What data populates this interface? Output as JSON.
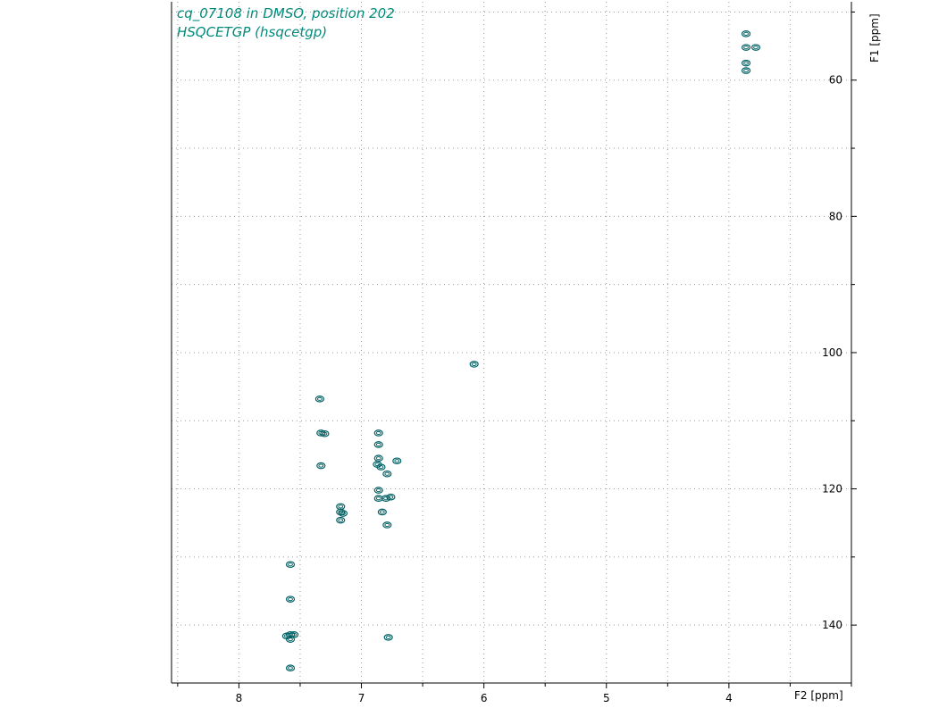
{
  "title_lines": [
    "cq_07108 in DMSO, position 202",
    "HSQCETGP (hsqcetgp)"
  ],
  "colors": {
    "contour": "#006064",
    "title": "#008b7a",
    "grid": "#9a9a9a",
    "axis": "#000000"
  },
  "chart_data": {
    "type": "scatter",
    "x_axis": {
      "label": "F2 [ppm]",
      "min": 3.0,
      "max": 8.55,
      "reversed": true,
      "ticks": [
        8,
        7,
        6,
        5,
        4
      ],
      "minor_step": 0.5,
      "grid_step": 0.5
    },
    "y_axis": {
      "label": "F1 [ppm]",
      "min": 48.5,
      "max": 148.5,
      "reversed": true,
      "ticks": [
        60,
        80,
        100,
        120,
        140
      ],
      "minor_step": 10,
      "grid_step": 10,
      "position": "right"
    },
    "grid": true,
    "peaks": [
      {
        "x": 3.86,
        "y": 55.2
      },
      {
        "x": 3.78,
        "y": 55.2
      },
      {
        "x": 3.86,
        "y": 53.2
      },
      {
        "x": 3.86,
        "y": 57.5
      },
      {
        "x": 3.86,
        "y": 58.6
      },
      {
        "x": 6.08,
        "y": 101.7
      },
      {
        "x": 7.33,
        "y": 111.8
      },
      {
        "x": 7.3,
        "y": 111.9
      },
      {
        "x": 7.33,
        "y": 116.6
      },
      {
        "x": 7.34,
        "y": 106.8
      },
      {
        "x": 6.86,
        "y": 111.8
      },
      {
        "x": 6.86,
        "y": 113.5
      },
      {
        "x": 6.86,
        "y": 115.5
      },
      {
        "x": 6.87,
        "y": 116.4
      },
      {
        "x": 6.84,
        "y": 116.8
      },
      {
        "x": 6.79,
        "y": 117.8
      },
      {
        "x": 6.71,
        "y": 115.9
      },
      {
        "x": 6.86,
        "y": 120.2
      },
      {
        "x": 6.86,
        "y": 121.4
      },
      {
        "x": 6.8,
        "y": 121.4
      },
      {
        "x": 6.76,
        "y": 121.2
      },
      {
        "x": 6.83,
        "y": 123.4
      },
      {
        "x": 7.17,
        "y": 123.4
      },
      {
        "x": 7.15,
        "y": 123.6
      },
      {
        "x": 7.17,
        "y": 124.6
      },
      {
        "x": 7.17,
        "y": 122.6
      },
      {
        "x": 6.79,
        "y": 125.3
      },
      {
        "x": 7.58,
        "y": 131.1
      },
      {
        "x": 7.58,
        "y": 136.2
      },
      {
        "x": 7.58,
        "y": 141.4
      },
      {
        "x": 7.55,
        "y": 141.4
      },
      {
        "x": 7.61,
        "y": 141.6
      },
      {
        "x": 7.58,
        "y": 142.1
      },
      {
        "x": 6.78,
        "y": 141.8
      },
      {
        "x": 7.58,
        "y": 146.3
      }
    ]
  }
}
